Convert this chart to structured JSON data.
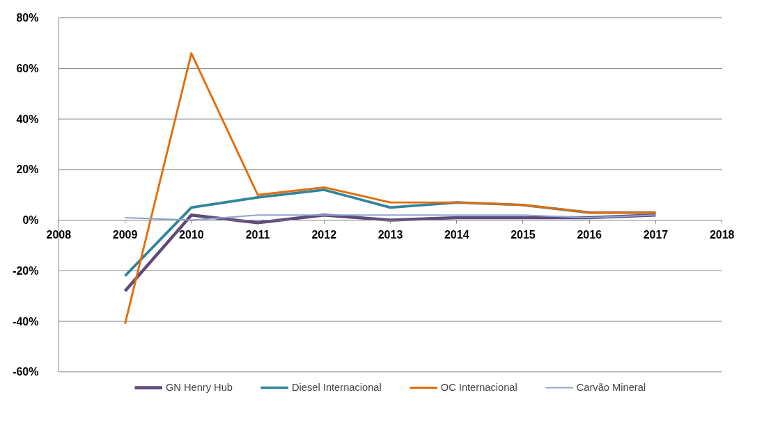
{
  "chart_data": {
    "type": "line",
    "x": [
      2009,
      2010,
      2011,
      2012,
      2013,
      2014,
      2015,
      2016,
      2017
    ],
    "series": [
      {
        "name": "GN Henry Hub",
        "color": "#604a7b",
        "values": [
          -28,
          2,
          -1,
          2,
          0,
          1,
          1,
          1,
          2
        ]
      },
      {
        "name": "Diesel Internacional",
        "color": "#31859c",
        "values": [
          -22,
          5,
          9,
          12,
          5,
          7,
          6,
          3,
          3
        ]
      },
      {
        "name": "OC Internacional",
        "color": "#e46c0a",
        "values": [
          -41,
          66,
          10,
          13,
          7,
          7,
          6,
          3,
          3
        ]
      },
      {
        "name": "Carvão Mineral",
        "color": "#8ea5cf",
        "values": [
          1,
          0,
          2,
          2,
          2,
          2,
          2,
          1,
          2
        ]
      }
    ],
    "xlim": [
      2008,
      2018
    ],
    "xticks": [
      2008,
      2009,
      2010,
      2011,
      2012,
      2013,
      2014,
      2015,
      2016,
      2017,
      2018
    ],
    "ylim": [
      -60,
      80
    ],
    "yticks": [
      {
        "value": -60,
        "label": "-60%"
      },
      {
        "value": -40,
        "label": "-40%"
      },
      {
        "value": -20,
        "label": "-20%"
      },
      {
        "value": 0,
        "label": "0%"
      },
      {
        "value": 20,
        "label": "20%"
      },
      {
        "value": 40,
        "label": "40%"
      },
      {
        "value": 60,
        "label": "60%"
      },
      {
        "value": 80,
        "label": "80%"
      }
    ],
    "grid": "y",
    "legend": "bottom",
    "marker": "none",
    "line_style": "solid"
  }
}
